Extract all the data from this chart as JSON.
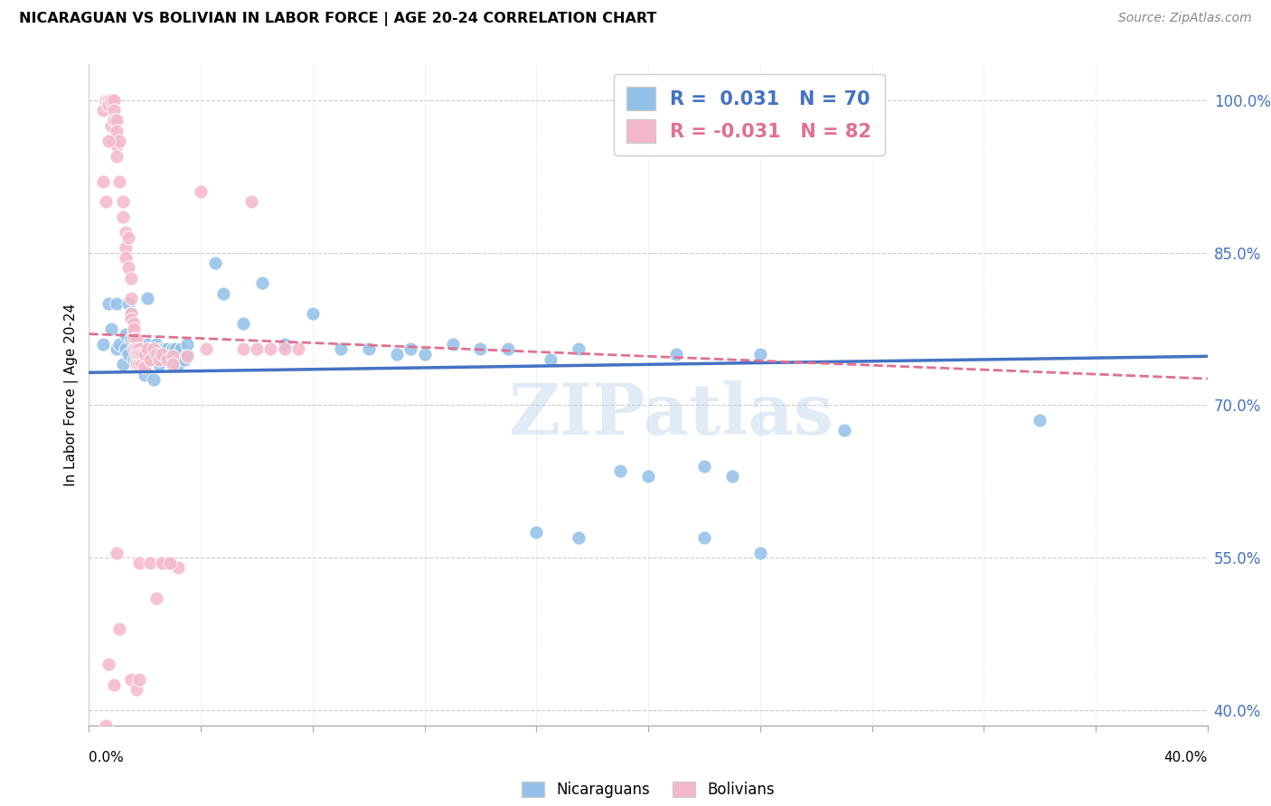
{
  "title": "NICARAGUAN VS BOLIVIAN IN LABOR FORCE | AGE 20-24 CORRELATION CHART",
  "source": "Source: ZipAtlas.com",
  "ylabel": "In Labor Force | Age 20-24",
  "y_ticks": [
    0.4,
    0.55,
    0.7,
    0.85,
    1.0
  ],
  "y_tick_labels": [
    "40.0%",
    "55.0%",
    "70.0%",
    "85.0%",
    "100.0%"
  ],
  "x_range": [
    0.0,
    0.4
  ],
  "y_range": [
    0.385,
    1.035
  ],
  "legend_blue_r": "0.031",
  "legend_blue_n": "70",
  "legend_pink_r": "-0.031",
  "legend_pink_n": "82",
  "blue_color": "#92C0E8",
  "pink_color": "#F5B8CB",
  "blue_line_color": "#4472C4",
  "pink_line_color": "#E07090",
  "watermark": "ZIPatlas",
  "blue_scatter": [
    [
      0.005,
      0.76
    ],
    [
      0.007,
      0.8
    ],
    [
      0.008,
      0.775
    ],
    [
      0.01,
      0.8
    ],
    [
      0.01,
      0.755
    ],
    [
      0.011,
      0.76
    ],
    [
      0.012,
      0.74
    ],
    [
      0.013,
      0.77
    ],
    [
      0.013,
      0.755
    ],
    [
      0.014,
      0.75
    ],
    [
      0.014,
      0.8
    ],
    [
      0.015,
      0.79
    ],
    [
      0.015,
      0.765
    ],
    [
      0.016,
      0.77
    ],
    [
      0.016,
      0.745
    ],
    [
      0.017,
      0.745
    ],
    [
      0.017,
      0.76
    ],
    [
      0.018,
      0.755
    ],
    [
      0.018,
      0.74
    ],
    [
      0.019,
      0.75
    ],
    [
      0.019,
      0.74
    ],
    [
      0.02,
      0.745
    ],
    [
      0.02,
      0.73
    ],
    [
      0.021,
      0.805
    ],
    [
      0.021,
      0.76
    ],
    [
      0.022,
      0.755
    ],
    [
      0.023,
      0.725
    ],
    [
      0.023,
      0.745
    ],
    [
      0.024,
      0.76
    ],
    [
      0.025,
      0.74
    ],
    [
      0.026,
      0.755
    ],
    [
      0.027,
      0.755
    ],
    [
      0.028,
      0.745
    ],
    [
      0.028,
      0.755
    ],
    [
      0.03,
      0.755
    ],
    [
      0.031,
      0.755
    ],
    [
      0.032,
      0.74
    ],
    [
      0.033,
      0.755
    ],
    [
      0.034,
      0.745
    ],
    [
      0.035,
      0.75
    ],
    [
      0.035,
      0.76
    ],
    [
      0.045,
      0.84
    ],
    [
      0.048,
      0.81
    ],
    [
      0.055,
      0.78
    ],
    [
      0.062,
      0.82
    ],
    [
      0.07,
      0.76
    ],
    [
      0.08,
      0.79
    ],
    [
      0.09,
      0.755
    ],
    [
      0.1,
      0.755
    ],
    [
      0.11,
      0.75
    ],
    [
      0.115,
      0.755
    ],
    [
      0.12,
      0.75
    ],
    [
      0.13,
      0.76
    ],
    [
      0.14,
      0.755
    ],
    [
      0.15,
      0.755
    ],
    [
      0.165,
      0.745
    ],
    [
      0.175,
      0.755
    ],
    [
      0.19,
      0.635
    ],
    [
      0.21,
      0.75
    ],
    [
      0.22,
      0.64
    ],
    [
      0.24,
      0.75
    ],
    [
      0.27,
      0.675
    ],
    [
      0.34,
      0.685
    ],
    [
      0.2,
      0.63
    ],
    [
      0.23,
      0.63
    ],
    [
      0.16,
      0.575
    ],
    [
      0.175,
      0.57
    ],
    [
      0.22,
      0.57
    ],
    [
      0.24,
      0.555
    ]
  ],
  "pink_scatter": [
    [
      0.005,
      0.99
    ],
    [
      0.006,
      1.0
    ],
    [
      0.006,
      1.0
    ],
    [
      0.007,
      1.0
    ],
    [
      0.007,
      1.0
    ],
    [
      0.007,
      0.995
    ],
    [
      0.008,
      1.0
    ],
    [
      0.008,
      0.975
    ],
    [
      0.009,
      1.0
    ],
    [
      0.009,
      0.99
    ],
    [
      0.009,
      0.98
    ],
    [
      0.009,
      0.96
    ],
    [
      0.01,
      0.98
    ],
    [
      0.01,
      0.97
    ],
    [
      0.01,
      0.955
    ],
    [
      0.01,
      0.945
    ],
    [
      0.011,
      0.96
    ],
    [
      0.011,
      0.92
    ],
    [
      0.012,
      0.9
    ],
    [
      0.012,
      0.885
    ],
    [
      0.013,
      0.87
    ],
    [
      0.013,
      0.855
    ],
    [
      0.013,
      0.845
    ],
    [
      0.014,
      0.865
    ],
    [
      0.014,
      0.835
    ],
    [
      0.015,
      0.825
    ],
    [
      0.015,
      0.805
    ],
    [
      0.015,
      0.79
    ],
    [
      0.015,
      0.785
    ],
    [
      0.016,
      0.78
    ],
    [
      0.016,
      0.775
    ],
    [
      0.016,
      0.765
    ],
    [
      0.016,
      0.755
    ],
    [
      0.017,
      0.765
    ],
    [
      0.017,
      0.755
    ],
    [
      0.017,
      0.75
    ],
    [
      0.017,
      0.74
    ],
    [
      0.018,
      0.755
    ],
    [
      0.018,
      0.75
    ],
    [
      0.018,
      0.74
    ],
    [
      0.019,
      0.75
    ],
    [
      0.019,
      0.74
    ],
    [
      0.02,
      0.75
    ],
    [
      0.02,
      0.738
    ],
    [
      0.021,
      0.755
    ],
    [
      0.022,
      0.745
    ],
    [
      0.023,
      0.755
    ],
    [
      0.024,
      0.75
    ],
    [
      0.025,
      0.745
    ],
    [
      0.026,
      0.75
    ],
    [
      0.028,
      0.745
    ],
    [
      0.03,
      0.748
    ],
    [
      0.03,
      0.74
    ],
    [
      0.035,
      0.748
    ],
    [
      0.04,
      0.91
    ],
    [
      0.042,
      0.755
    ],
    [
      0.055,
      0.755
    ],
    [
      0.06,
      0.755
    ],
    [
      0.065,
      0.755
    ],
    [
      0.07,
      0.755
    ],
    [
      0.075,
      0.755
    ],
    [
      0.01,
      0.555
    ],
    [
      0.018,
      0.545
    ],
    [
      0.024,
      0.51
    ],
    [
      0.027,
      0.545
    ],
    [
      0.028,
      0.545
    ],
    [
      0.032,
      0.54
    ],
    [
      0.007,
      0.445
    ],
    [
      0.009,
      0.425
    ],
    [
      0.011,
      0.48
    ],
    [
      0.015,
      0.43
    ],
    [
      0.017,
      0.42
    ],
    [
      0.018,
      0.43
    ],
    [
      0.022,
      0.545
    ],
    [
      0.026,
      0.545
    ],
    [
      0.029,
      0.545
    ],
    [
      0.006,
      0.9
    ],
    [
      0.006,
      0.385
    ],
    [
      0.058,
      0.9
    ],
    [
      0.007,
      0.96
    ],
    [
      0.005,
      0.92
    ]
  ],
  "blue_trendline": [
    [
      0.0,
      0.732
    ],
    [
      0.4,
      0.748
    ]
  ],
  "pink_trendline": [
    [
      0.0,
      0.77
    ],
    [
      0.4,
      0.726
    ]
  ]
}
